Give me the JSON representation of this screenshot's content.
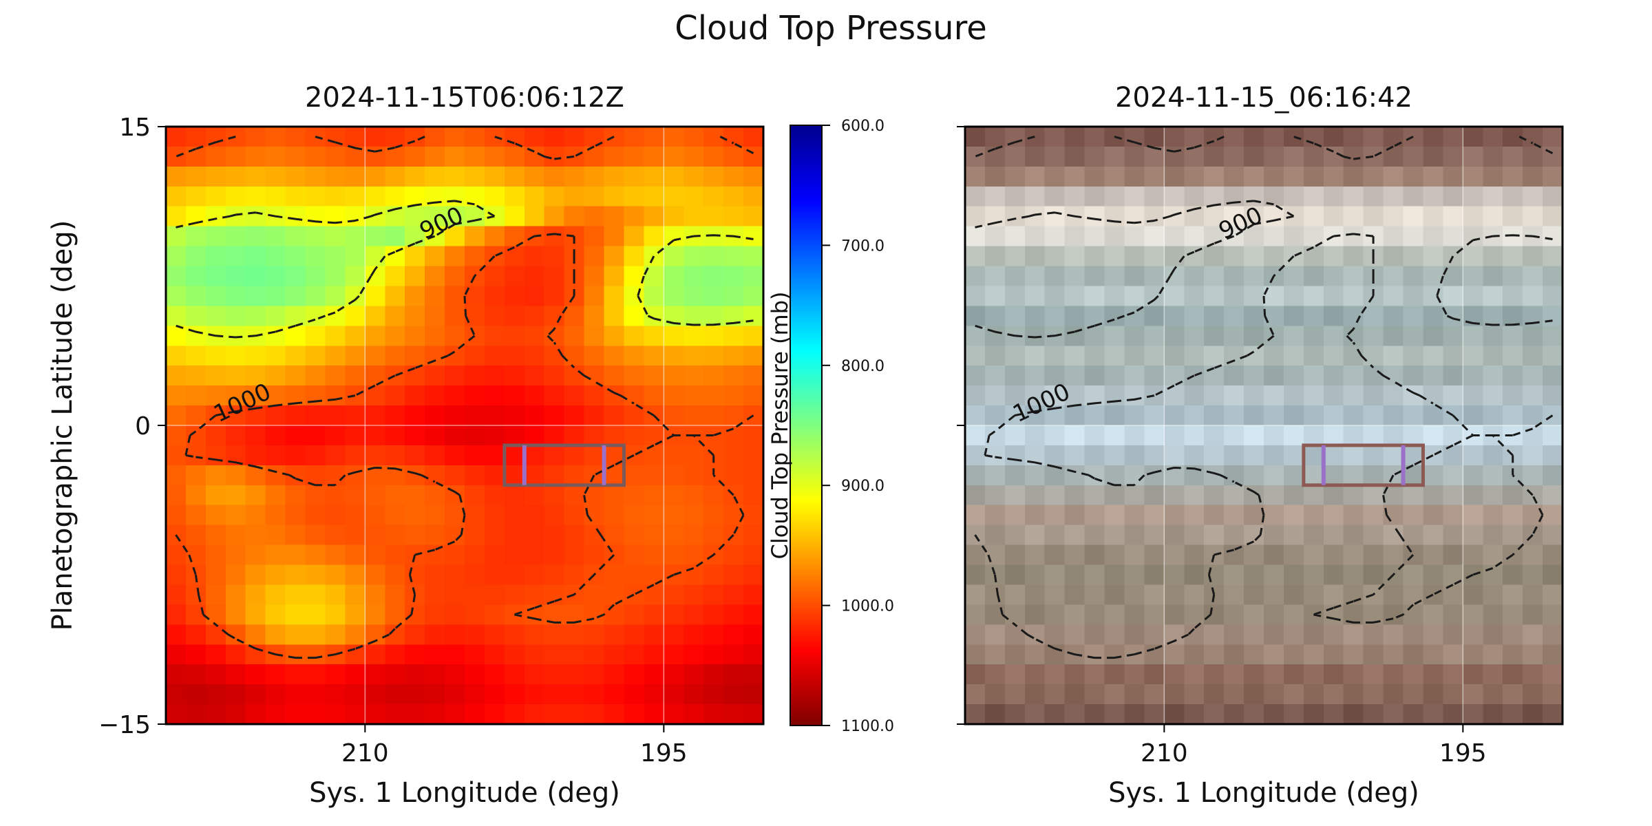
{
  "figure": {
    "title": "Cloud Top Pressure"
  },
  "chart_data": [
    {
      "type": "heatmap",
      "title": "2024-11-15T06:06:12Z",
      "xlabel": "Sys. 1 Longitude (deg)",
      "ylabel": "Planetographic Latitude (deg)",
      "xlim": [
        220,
        190
      ],
      "ylim": [
        -15,
        15
      ],
      "xticks": [
        210,
        195
      ],
      "xtick_labels": [
        "210",
        "195"
      ],
      "yticks": [
        15,
        0,
        -15
      ],
      "ytick_labels": [
        "15",
        "0",
        "−15"
      ],
      "grid": true,
      "colormap": "jet_r",
      "values_description": "Cloud top pressure (mb)",
      "rows": [
        [
          1012,
          1008,
          1004,
          1000,
          996,
          992,
          996,
          1000,
          1004,
          1008,
          1012,
          1010,
          1004,
          996,
          990,
          994,
          1000,
          1006,
          1012,
          1016,
          1012,
          1006,
          1000,
          996,
          992,
          988,
          992,
          998,
          1004,
          1010
        ],
        [
          1000,
          995,
          990,
          985,
          980,
          978,
          982,
          986,
          990,
          994,
          996,
          992,
          986,
          978,
          972,
          976,
          982,
          988,
          996,
          1004,
          1000,
          994,
          988,
          984,
          980,
          976,
          980,
          986,
          992,
          998
        ],
        [
          962,
          958,
          955,
          952,
          950,
          952,
          956,
          960,
          964,
          966,
          962,
          955,
          948,
          942,
          940,
          944,
          950,
          958,
          966,
          972,
          968,
          962,
          956,
          952,
          950,
          950,
          955,
          960,
          965,
          970
        ],
        [
          940,
          934,
          928,
          924,
          922,
          924,
          928,
          930,
          932,
          930,
          924,
          918,
          912,
          908,
          906,
          910,
          918,
          928,
          940,
          950,
          955,
          952,
          946,
          942,
          940,
          938,
          940,
          944,
          948,
          952
        ],
        [
          925,
          915,
          905,
          898,
          895,
          900,
          905,
          910,
          912,
          908,
          898,
          890,
          885,
          882,
          880,
          885,
          900,
          920,
          940,
          960,
          975,
          980,
          975,
          965,
          955,
          945,
          940,
          940,
          942,
          945
        ],
        [
          880,
          870,
          865,
          862,
          860,
          862,
          868,
          872,
          876,
          872,
          866,
          862,
          880,
          900,
          930,
          956,
          975,
          990,
          1000,
          1005,
          1000,
          990,
          975,
          950,
          925,
          905,
          900,
          898,
          900,
          905
        ],
        [
          868,
          858,
          852,
          850,
          848,
          852,
          856,
          862,
          866,
          872,
          890,
          910,
          935,
          955,
          975,
          990,
          1000,
          1008,
          1012,
          1010,
          1000,
          985,
          960,
          930,
          900,
          880,
          870,
          868,
          870,
          872
        ],
        [
          860,
          852,
          848,
          845,
          844,
          846,
          850,
          858,
          866,
          880,
          905,
          930,
          950,
          972,
          988,
          1000,
          1008,
          1014,
          1016,
          1012,
          1000,
          980,
          950,
          915,
          885,
          865,
          858,
          855,
          856,
          860
        ],
        [
          870,
          862,
          856,
          852,
          850,
          852,
          858,
          866,
          876,
          895,
          920,
          945,
          965,
          980,
          995,
          1005,
          1012,
          1016,
          1018,
          1012,
          1000,
          975,
          940,
          905,
          880,
          866,
          860,
          858,
          860,
          866
        ],
        [
          888,
          880,
          875,
          872,
          874,
          880,
          888,
          895,
          905,
          920,
          940,
          958,
          970,
          982,
          995,
          1004,
          1010,
          1012,
          1010,
          1004,
          992,
          970,
          940,
          912,
          895,
          885,
          880,
          880,
          884,
          890
        ],
        [
          912,
          905,
          900,
          898,
          900,
          905,
          912,
          922,
          932,
          945,
          958,
          968,
          976,
          984,
          992,
          1000,
          1005,
          1006,
          1004,
          998,
          988,
          972,
          955,
          940,
          932,
          926,
          924,
          925,
          928,
          932
        ],
        [
          935,
          930,
          926,
          924,
          926,
          930,
          938,
          946,
          956,
          966,
          976,
          984,
          990,
          996,
          1002,
          1008,
          1012,
          1012,
          1010,
          1004,
          994,
          984,
          974,
          966,
          960,
          956,
          954,
          955,
          958,
          962
        ],
        [
          955,
          952,
          950,
          948,
          950,
          955,
          962,
          970,
          978,
          986,
          994,
          1000,
          1006,
          1012,
          1018,
          1022,
          1024,
          1022,
          1018,
          1012,
          1004,
          996,
          988,
          982,
          978,
          975,
          974,
          975,
          978,
          982
        ],
        [
          970,
          972,
          974,
          976,
          978,
          982,
          986,
          990,
          994,
          1000,
          1006,
          1012,
          1020,
          1026,
          1030,
          1034,
          1036,
          1034,
          1030,
          1024,
          1018,
          1010,
          1002,
          996,
          990,
          986,
          984,
          984,
          986,
          990
        ],
        [
          985,
          992,
          1000,
          1006,
          1012,
          1018,
          1022,
          1024,
          1024,
          1022,
          1024,
          1028,
          1034,
          1040,
          1044,
          1046,
          1046,
          1044,
          1040,
          1034,
          1028,
          1020,
          1012,
          1006,
          1000,
          996,
          994,
          994,
          996,
          1000
        ],
        [
          995,
          1002,
          1010,
          1018,
          1024,
          1030,
          1034,
          1034,
          1030,
          1026,
          1026,
          1030,
          1036,
          1042,
          1048,
          1050,
          1048,
          1044,
          1038,
          1030,
          1022,
          1014,
          1008,
          1004,
          1002,
          1000,
          1000,
          1000,
          1002,
          1004
        ],
        [
          998,
          1002,
          1008,
          1014,
          1020,
          1024,
          1026,
          1024,
          1018,
          1012,
          1010,
          1012,
          1018,
          1024,
          1030,
          1034,
          1034,
          1030,
          1024,
          1018,
          1012,
          1006,
          1002,
          1000,
          998,
          998,
          998,
          1000,
          1002,
          1004
        ],
        [
          990,
          980,
          972,
          975,
          985,
          995,
          1002,
          1004,
          1002,
          998,
          994,
          994,
          998,
          1004,
          1010,
          1016,
          1020,
          1020,
          1016,
          1010,
          1004,
          1000,
          998,
          996,
          996,
          996,
          998,
          1000,
          1002,
          1004
        ],
        [
          992,
          975,
          962,
          960,
          968,
          980,
          990,
          996,
          998,
          996,
          992,
          988,
          988,
          992,
          998,
          1006,
          1012,
          1014,
          1012,
          1008,
          1002,
          998,
          994,
          992,
          990,
          990,
          992,
          996,
          1000,
          1004
        ],
        [
          995,
          985,
          975,
          972,
          976,
          984,
          992,
          998,
          1000,
          998,
          994,
          990,
          988,
          990,
          996,
          1004,
          1010,
          1014,
          1014,
          1010,
          1004,
          998,
          994,
          990,
          988,
          988,
          990,
          994,
          998,
          1002
        ],
        [
          1000,
          994,
          986,
          980,
          978,
          980,
          986,
          992,
          996,
          998,
          996,
          994,
          992,
          994,
          998,
          1004,
          1010,
          1014,
          1014,
          1012,
          1008,
          1002,
          996,
          992,
          990,
          990,
          992,
          996,
          1000,
          1004
        ],
        [
          1004,
          998,
          990,
          982,
          976,
          972,
          972,
          976,
          982,
          988,
          994,
          998,
          1000,
          1002,
          1004,
          1008,
          1012,
          1014,
          1014,
          1012,
          1008,
          1004,
          1000,
          996,
          994,
          994,
          996,
          1000,
          1004,
          1008
        ],
        [
          1008,
          1000,
          990,
          978,
          966,
          958,
          954,
          956,
          962,
          972,
          984,
          994,
          1002,
          1006,
          1008,
          1010,
          1012,
          1012,
          1010,
          1008,
          1004,
          1000,
          998,
          998,
          998,
          1000,
          1002,
          1006,
          1010,
          1014
        ],
        [
          1012,
          1002,
          988,
          972,
          956,
          944,
          938,
          938,
          946,
          960,
          976,
          990,
          1000,
          1006,
          1008,
          1008,
          1008,
          1006,
          1004,
          1002,
          1000,
          998,
          998,
          1000,
          1002,
          1006,
          1010,
          1014,
          1018,
          1022
        ],
        [
          1018,
          1006,
          990,
          972,
          954,
          940,
          932,
          932,
          940,
          956,
          974,
          990,
          1002,
          1008,
          1010,
          1008,
          1004,
          1000,
          998,
          996,
          996,
          998,
          1002,
          1006,
          1010,
          1014,
          1018,
          1022,
          1026,
          1030
        ],
        [
          1030,
          1022,
          1010,
          994,
          976,
          960,
          952,
          952,
          960,
          974,
          990,
          1004,
          1014,
          1020,
          1022,
          1020,
          1016,
          1012,
          1008,
          1006,
          1006,
          1008,
          1012,
          1016,
          1020,
          1024,
          1028,
          1032,
          1036,
          1040
        ],
        [
          1045,
          1040,
          1032,
          1022,
          1010,
          1000,
          994,
          994,
          1000,
          1010,
          1020,
          1028,
          1034,
          1036,
          1036,
          1032,
          1026,
          1020,
          1016,
          1014,
          1014,
          1016,
          1020,
          1024,
          1028,
          1032,
          1036,
          1040,
          1044,
          1048
        ],
        [
          1058,
          1056,
          1052,
          1046,
          1040,
          1034,
          1030,
          1030,
          1034,
          1040,
          1046,
          1050,
          1052,
          1050,
          1046,
          1040,
          1034,
          1028,
          1024,
          1022,
          1022,
          1024,
          1028,
          1034,
          1040,
          1046,
          1052,
          1058,
          1062,
          1064
        ],
        [
          1064,
          1066,
          1064,
          1060,
          1054,
          1048,
          1044,
          1044,
          1046,
          1050,
          1054,
          1058,
          1058,
          1056,
          1052,
          1046,
          1040,
          1034,
          1030,
          1028,
          1028,
          1030,
          1034,
          1040,
          1046,
          1052,
          1058,
          1062,
          1066,
          1068
        ],
        [
          1060,
          1062,
          1060,
          1056,
          1050,
          1044,
          1040,
          1040,
          1042,
          1046,
          1050,
          1052,
          1052,
          1050,
          1046,
          1040,
          1034,
          1028,
          1024,
          1022,
          1022,
          1024,
          1028,
          1034,
          1040,
          1046,
          1050,
          1054,
          1056,
          1058
        ]
      ],
      "contours": [
        {
          "level": 900,
          "label": "900"
        },
        {
          "level": 1000,
          "label": "1000"
        }
      ],
      "box": {
        "lon_min": 197,
        "lon_max": 203,
        "lat_min": -3,
        "lat_max": -1,
        "color": "#7a5a5a"
      },
      "box_markers": [
        {
          "lon": 202,
          "color": "#9a70c8"
        },
        {
          "lon": 198,
          "color": "#9a70c8"
        }
      ]
    },
    {
      "type": "heatmap",
      "title": "2024-11-15_06:16:42",
      "xlabel": "Sys. 1 Longitude (deg)",
      "ylabel": "",
      "xlim": [
        220,
        190
      ],
      "ylim": [
        -15,
        15
      ],
      "xticks": [
        210,
        195
      ],
      "xtick_labels": [
        "210",
        "195"
      ],
      "yticks": [
        15,
        0,
        -15
      ],
      "ytick_labels": [
        "",
        "",
        ""
      ],
      "grid": true,
      "values_description": "True-color image with cloud top pressure contours",
      "band_colors": [
        "#805a50",
        "#8d6a60",
        "#a08070",
        "#c8c0b8",
        "#e4dcd0",
        "#dcdcd4",
        "#b8c0b8",
        "#a8b8b4",
        "#b8c8c8",
        "#9aaeb0",
        "#a0b0ac",
        "#b0bcb8",
        "#a4b4b4",
        "#b4c4c8",
        "#a8bcc6",
        "#c8dce8",
        "#b4c4cc",
        "#a8b4b4",
        "#a8a8a0",
        "#b09a8c",
        "#a89a8c",
        "#9a8c7c",
        "#948a78",
        "#9a8c7a",
        "#988a78",
        "#a08a7c",
        "#9c8474",
        "#906a5c",
        "#8c6a5c",
        "#7a5a50"
      ],
      "contours": [
        {
          "level": 900,
          "label": "900"
        },
        {
          "level": 1000,
          "label": "1000"
        }
      ],
      "box": {
        "lon_min": 197,
        "lon_max": 203,
        "lat_min": -3,
        "lat_max": -1,
        "color": "#8c5a52"
      },
      "box_markers": [
        {
          "lon": 202,
          "color": "#9a70c8"
        },
        {
          "lon": 198,
          "color": "#9a70c8"
        }
      ]
    }
  ],
  "colorbar": {
    "label": "Cloud Top Pressure (mb)",
    "range": [
      600,
      1100
    ],
    "ticks": [
      600,
      700,
      800,
      900,
      1000,
      1100
    ],
    "tick_labels": [
      "600.0",
      "700.0",
      "800.0",
      "900.0",
      "1000.0",
      "1100.0"
    ],
    "colormap": "jet_r"
  }
}
